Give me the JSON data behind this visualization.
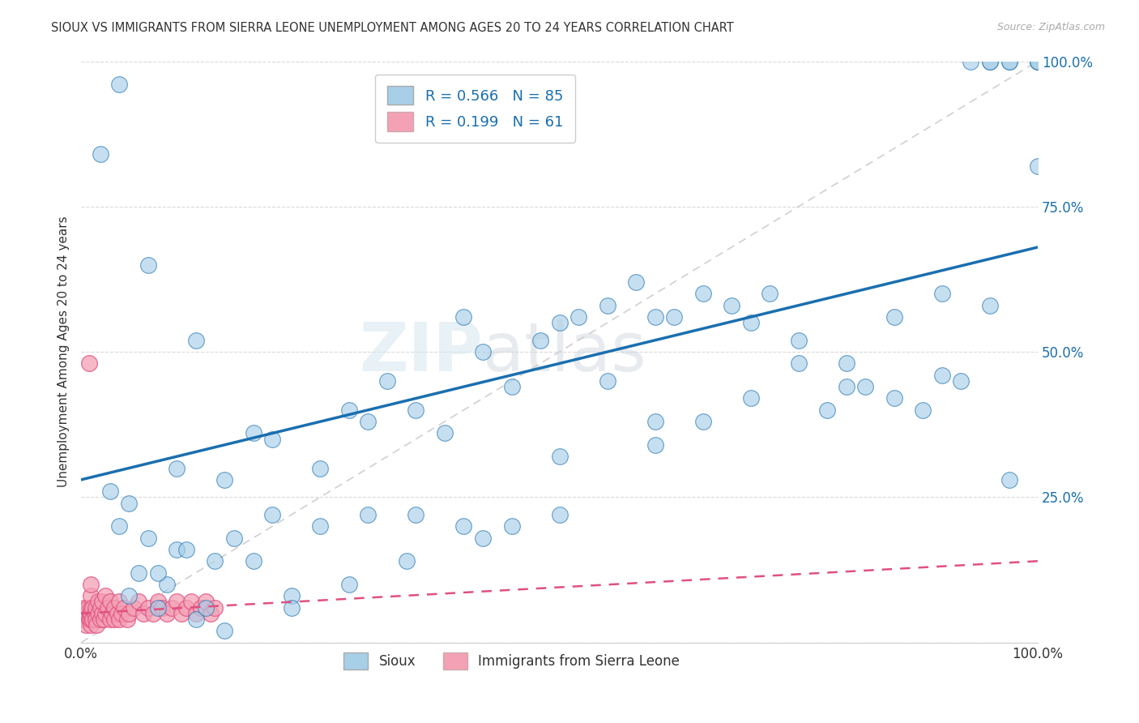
{
  "title": "SIOUX VS IMMIGRANTS FROM SIERRA LEONE UNEMPLOYMENT AMONG AGES 20 TO 24 YEARS CORRELATION CHART",
  "source": "Source: ZipAtlas.com",
  "ylabel": "Unemployment Among Ages 20 to 24 years",
  "xlim": [
    0,
    1
  ],
  "ylim": [
    0,
    1
  ],
  "sioux_color": "#a8cfe8",
  "sierra_color": "#f4a0b5",
  "sioux_line_color": "#1a6faf",
  "sierra_line_color": "#e05080",
  "ref_line_color": "#d0d0d0",
  "R_sioux": 0.566,
  "N_sioux": 85,
  "R_sierra": 0.199,
  "N_sierra": 61,
  "background_color": "#ffffff",
  "sioux_x": [
    0.04,
    0.02,
    0.07,
    0.12,
    0.18,
    0.04,
    0.07,
    0.1,
    0.14,
    0.2,
    0.05,
    0.08,
    0.12,
    0.15,
    0.22,
    0.06,
    0.09,
    0.13,
    0.18,
    0.25,
    0.3,
    0.35,
    0.4,
    0.45,
    0.5,
    0.3,
    0.35,
    0.4,
    0.45,
    0.5,
    0.55,
    0.6,
    0.65,
    0.7,
    0.75,
    0.55,
    0.6,
    0.65,
    0.7,
    0.75,
    0.8,
    0.85,
    0.9,
    0.95,
    1.0,
    0.8,
    0.85,
    0.9,
    0.93,
    0.95,
    0.97,
    1.0,
    1.0,
    0.97,
    0.95,
    0.1,
    0.15,
    0.2,
    0.25,
    0.28,
    0.32,
    0.38,
    0.42,
    0.48,
    0.52,
    0.58,
    0.62,
    0.68,
    0.72,
    0.78,
    0.82,
    0.88,
    0.92,
    0.97,
    1.0,
    0.03,
    0.05,
    0.08,
    0.11,
    0.16,
    0.22,
    0.28,
    0.34,
    0.42,
    0.5,
    0.6
  ],
  "sioux_y": [
    0.96,
    0.84,
    0.65,
    0.52,
    0.36,
    0.2,
    0.18,
    0.16,
    0.14,
    0.22,
    0.08,
    0.06,
    0.04,
    0.02,
    0.08,
    0.12,
    0.1,
    0.06,
    0.14,
    0.2,
    0.22,
    0.22,
    0.2,
    0.2,
    0.32,
    0.38,
    0.4,
    0.56,
    0.44,
    0.55,
    0.58,
    0.56,
    0.6,
    0.55,
    0.52,
    0.45,
    0.38,
    0.38,
    0.42,
    0.48,
    0.48,
    0.56,
    0.6,
    0.58,
    1.0,
    0.44,
    0.42,
    0.46,
    1.0,
    1.0,
    1.0,
    1.0,
    1.0,
    1.0,
    1.0,
    0.3,
    0.28,
    0.35,
    0.3,
    0.4,
    0.45,
    0.36,
    0.5,
    0.52,
    0.56,
    0.62,
    0.56,
    0.58,
    0.6,
    0.4,
    0.44,
    0.4,
    0.45,
    0.28,
    0.82,
    0.26,
    0.24,
    0.12,
    0.16,
    0.18,
    0.06,
    0.1,
    0.14,
    0.18,
    0.22,
    0.34
  ],
  "sierra_x": [
    0.002,
    0.003,
    0.004,
    0.005,
    0.006,
    0.007,
    0.008,
    0.009,
    0.01,
    0.01,
    0.01,
    0.01,
    0.01,
    0.01,
    0.012,
    0.012,
    0.014,
    0.015,
    0.015,
    0.016,
    0.018,
    0.018,
    0.02,
    0.02,
    0.022,
    0.022,
    0.024,
    0.025,
    0.025,
    0.028,
    0.03,
    0.03,
    0.032,
    0.035,
    0.035,
    0.038,
    0.04,
    0.04,
    0.042,
    0.045,
    0.048,
    0.05,
    0.055,
    0.06,
    0.065,
    0.07,
    0.075,
    0.08,
    0.085,
    0.09,
    0.095,
    0.1,
    0.105,
    0.11,
    0.115,
    0.12,
    0.125,
    0.13,
    0.135,
    0.14,
    0.008
  ],
  "sierra_y": [
    0.05,
    0.06,
    0.04,
    0.03,
    0.05,
    0.06,
    0.04,
    0.05,
    0.03,
    0.04,
    0.05,
    0.06,
    0.08,
    0.1,
    0.04,
    0.06,
    0.05,
    0.04,
    0.06,
    0.03,
    0.05,
    0.07,
    0.04,
    0.06,
    0.05,
    0.07,
    0.04,
    0.05,
    0.08,
    0.06,
    0.04,
    0.07,
    0.05,
    0.04,
    0.06,
    0.05,
    0.04,
    0.07,
    0.05,
    0.06,
    0.04,
    0.05,
    0.06,
    0.07,
    0.05,
    0.06,
    0.05,
    0.07,
    0.06,
    0.05,
    0.06,
    0.07,
    0.05,
    0.06,
    0.07,
    0.05,
    0.06,
    0.07,
    0.05,
    0.06,
    0.48
  ]
}
